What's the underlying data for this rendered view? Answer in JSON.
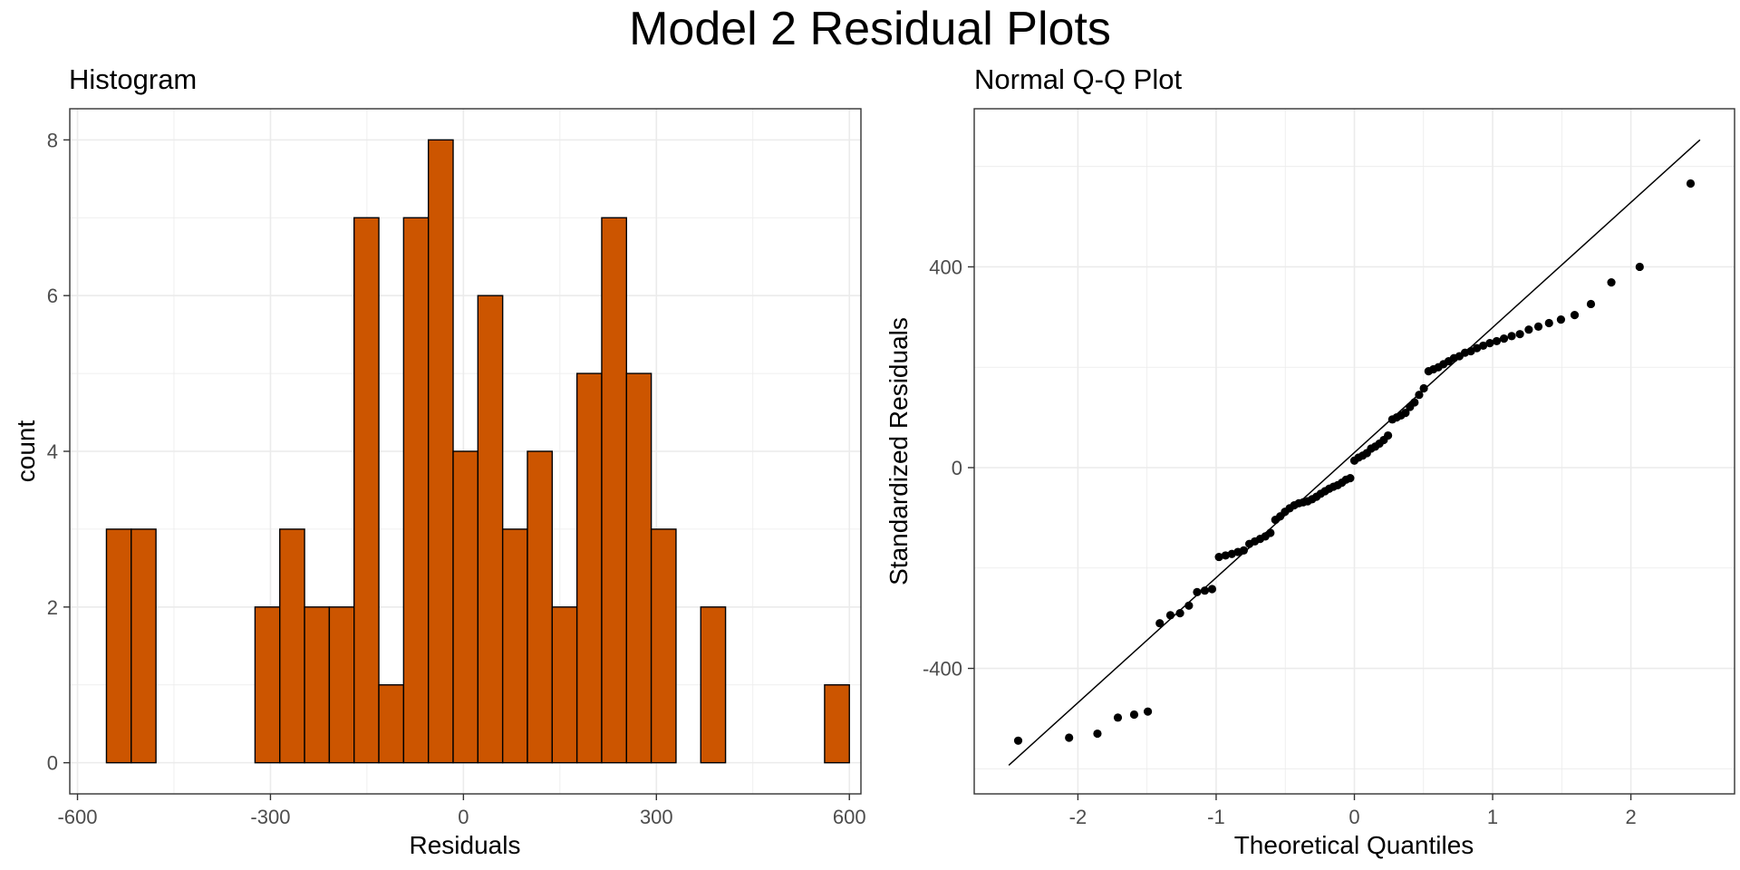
{
  "title": "Model 2 Residual Plots",
  "colors": {
    "bar_fill": "#CC5500",
    "bar_stroke": "#000000",
    "grid": "#EBEBEB",
    "point": "#000000"
  },
  "chart_data": [
    {
      "type": "bar",
      "title": "Histogram",
      "xlabel": "Residuals",
      "ylabel": "count",
      "bin_width": 38.5,
      "bins": [
        {
          "x0": -555,
          "count": 3
        },
        {
          "x0": -516.5,
          "count": 3
        },
        {
          "x0": -478,
          "count": 0
        },
        {
          "x0": -439.5,
          "count": 0
        },
        {
          "x0": -401,
          "count": 0
        },
        {
          "x0": -362.5,
          "count": 0
        },
        {
          "x0": -324,
          "count": 2
        },
        {
          "x0": -285.5,
          "count": 3
        },
        {
          "x0": -247,
          "count": 2
        },
        {
          "x0": -208.5,
          "count": 2
        },
        {
          "x0": -170,
          "count": 7
        },
        {
          "x0": -131.5,
          "count": 1
        },
        {
          "x0": -93,
          "count": 7
        },
        {
          "x0": -54.5,
          "count": 8
        },
        {
          "x0": -16,
          "count": 4
        },
        {
          "x0": 22.5,
          "count": 6
        },
        {
          "x0": 61,
          "count": 3
        },
        {
          "x0": 99.5,
          "count": 4
        },
        {
          "x0": 138,
          "count": 2
        },
        {
          "x0": 176.5,
          "count": 5
        },
        {
          "x0": 215,
          "count": 7
        },
        {
          "x0": 253.5,
          "count": 5
        },
        {
          "x0": 292,
          "count": 3
        },
        {
          "x0": 330.5,
          "count": 0
        },
        {
          "x0": 369,
          "count": 2
        },
        {
          "x0": 407.5,
          "count": 0
        },
        {
          "x0": 446,
          "count": 0
        },
        {
          "x0": 484.5,
          "count": 0
        },
        {
          "x0": 523,
          "count": 0
        },
        {
          "x0": 561.5,
          "count": 1
        }
      ],
      "xlim": [
        -612,
        618
      ],
      "ylim": [
        -0.4,
        8.4
      ],
      "x_ticks": [
        -600,
        -300,
        0,
        300,
        600
      ],
      "x_tick_labels": [
        "-600",
        "-300",
        "0",
        "300",
        "600"
      ],
      "y_ticks": [
        0,
        2,
        4,
        6,
        8
      ],
      "y_tick_labels": [
        "0",
        "2",
        "4",
        "6",
        "8"
      ],
      "grid": true
    },
    {
      "type": "scatter",
      "title": "Normal Q-Q Plot",
      "xlabel": "Theoretical Quantiles",
      "ylabel": "Standardized Residuals",
      "points_y": [
        -544,
        -538,
        -530,
        -498,
        -492,
        -486,
        -310,
        -294,
        -290,
        -275,
        -248,
        -245,
        -242,
        -178,
        -175,
        -172,
        -168,
        -165,
        -152,
        -147,
        -142,
        -137,
        -130,
        -104,
        -97,
        -88,
        -81,
        -75,
        -71,
        -69,
        -67,
        -63,
        -58,
        -52,
        -47,
        -42,
        -38,
        -35,
        -30,
        -24,
        -21,
        14,
        20,
        24,
        29,
        38,
        42,
        48,
        55,
        64,
        96,
        100,
        104,
        109,
        121,
        130,
        145,
        158,
        192,
        196,
        200,
        206,
        212,
        218,
        222,
        229,
        232,
        238,
        243,
        248,
        252,
        257,
        262,
        266,
        275,
        281,
        288,
        295,
        304,
        326,
        369,
        400,
        566
      ],
      "line": {
        "x0": -2.5,
        "y0": -593,
        "x1": 2.5,
        "y1": 653
      },
      "xlim": [
        -2.75,
        2.75
      ],
      "ylim": [
        -650,
        715
      ],
      "x_ticks": [
        -2,
        -1,
        0,
        1,
        2
      ],
      "x_tick_labels": [
        "-2",
        "-1",
        "0",
        "1",
        "2"
      ],
      "y_ticks": [
        -400,
        0,
        400
      ],
      "y_tick_labels": [
        "-400",
        "0",
        "400"
      ],
      "grid": true
    }
  ]
}
